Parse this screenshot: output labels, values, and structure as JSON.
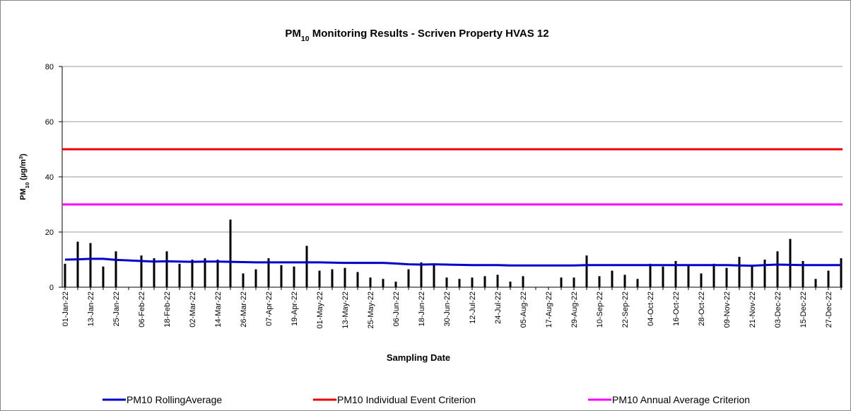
{
  "chart_data": {
    "type": "bar",
    "title": [
      {
        "text": "PM"
      },
      {
        "text": "10",
        "sub": true
      },
      {
        "text": " Monitoring Results - Scriven Property HVAS 12"
      }
    ],
    "y_label": [
      {
        "text": "PM"
      },
      {
        "text": "10",
        "sub": true
      },
      {
        "text": " (µg/m"
      },
      {
        "text": "3",
        "sup": true
      },
      {
        "text": ")"
      }
    ],
    "x_label": "Sampling Date",
    "categories": [
      "01-Jan-22",
      null,
      "13-Jan-22",
      null,
      "25-Jan-22",
      null,
      "06-Feb-22",
      null,
      "18-Feb-22",
      null,
      "02-Mar-22",
      null,
      "14-Mar-22",
      null,
      "26-Mar-22",
      null,
      "07-Apr-22",
      null,
      "19-Apr-22",
      null,
      "01-May-22",
      null,
      "13-May-22",
      null,
      "25-May-22",
      null,
      "06-Jun-22",
      null,
      "18-Jun-22",
      null,
      "30-Jun-22",
      null,
      "12-Jul-22",
      null,
      "24-Jul-22",
      null,
      "05-Aug-22",
      null,
      "17-Aug-22",
      null,
      "29-Aug-22",
      null,
      "10-Sep-22",
      null,
      "22-Sep-22",
      null,
      "04-Oct-22",
      null,
      "16-Oct-22",
      null,
      "28-Oct-22",
      null,
      "09-Nov-22",
      null,
      "21-Nov-22",
      null,
      "03-Dec-22",
      null,
      "15-Dec-22",
      null,
      "27-Dec-22",
      null
    ],
    "series": [
      {
        "type": "bar",
        "color": "#000000",
        "values": [
          8.5,
          16.5,
          16,
          7.5,
          13,
          null,
          11.5,
          10.5,
          13,
          8.5,
          10,
          10.5,
          10,
          24.5,
          5,
          6.5,
          10.5,
          8,
          7.5,
          15,
          6,
          6.5,
          7,
          5.5,
          3.5,
          3,
          2,
          6.5,
          9,
          8.5,
          3.5,
          3,
          3.5,
          4,
          4.5,
          2,
          4,
          null,
          null,
          3.5,
          3.5,
          11.5,
          4,
          6,
          4.5,
          3,
          8.5,
          7.5,
          9.5,
          8,
          5,
          8.5,
          7,
          11,
          7.5,
          10,
          13,
          17.5,
          9.5,
          3,
          6,
          10.5
        ]
      },
      {
        "type": "line",
        "name": "PM10 RollingAverage",
        "color": "#0000cc",
        "values": [
          10,
          10.1,
          10.3,
          10.3,
          9.9,
          9.7,
          9.5,
          9.3,
          9.4,
          9.3,
          9.2,
          9.3,
          9.3,
          9.2,
          9.1,
          9.0,
          9.0,
          9.0,
          9.0,
          9.0,
          9.0,
          8.9,
          8.8,
          8.8,
          8.8,
          8.8,
          8.6,
          8.3,
          8.2,
          8.3,
          8.2,
          8.1,
          8.0,
          8.0,
          8.0,
          7.9,
          7.9,
          7.9,
          7.9,
          7.9,
          7.9,
          8.0,
          8.0,
          8.0,
          8.0,
          8.0,
          8.0,
          8.0,
          8.0,
          8.0,
          8.0,
          8.0,
          8.0,
          7.9,
          7.8,
          8.0,
          8.2,
          8.1,
          8.0,
          8.0,
          8.0,
          8.0
        ]
      }
    ],
    "reference_lines": [
      {
        "name": "PM10 Individual Event Criterion",
        "color": "#ee0000",
        "value": 50
      },
      {
        "name": "PM10 Annual Average Criterion",
        "color": "#ff00ff",
        "value": 30
      }
    ],
    "ylim": [
      0,
      80
    ],
    "yticks": [
      0,
      20,
      40,
      60,
      80
    ],
    "grid": true,
    "legend": "bottom"
  }
}
